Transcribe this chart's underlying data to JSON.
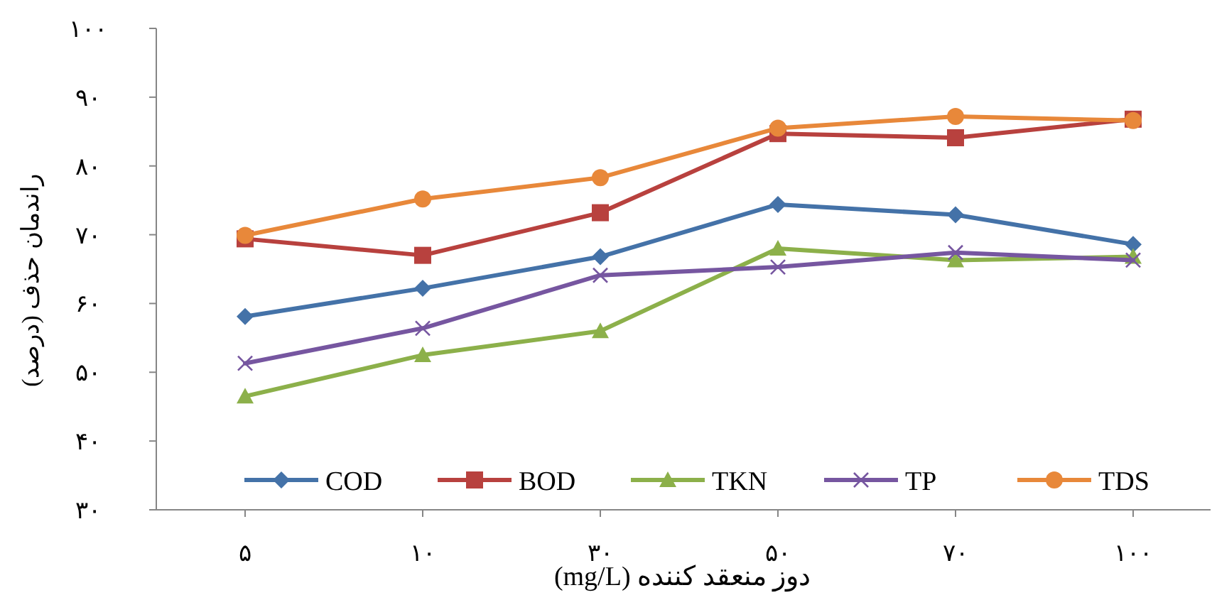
{
  "chart_data": {
    "type": "line",
    "xlabel": "دوز منعقد کننده (mg/L)",
    "ylabel": "راندمان حذف (درصد)",
    "categories": [
      "۵",
      "۱۰",
      "۳۰",
      "۵۰",
      "۷۰",
      "۱۰۰"
    ],
    "ylim": [
      30,
      100
    ],
    "yticks": [
      {
        "value": 30,
        "label": "۳۰"
      },
      {
        "value": 40,
        "label": "۴۰"
      },
      {
        "value": 50,
        "label": "۵۰"
      },
      {
        "value": 60,
        "label": "۶۰"
      },
      {
        "value": 70,
        "label": "۷۰"
      },
      {
        "value": 80,
        "label": "۸۰"
      },
      {
        "value": 90,
        "label": "۹۰"
      },
      {
        "value": 100,
        "label": "۱۰۰"
      }
    ],
    "grid": false,
    "legend": "bottom",
    "line_style": "solid",
    "series": [
      {
        "name": "COD",
        "color": "#4472a8",
        "marker": "diamond",
        "values": [
          58.1,
          62.2,
          66.8,
          74.4,
          72.9,
          68.6
        ]
      },
      {
        "name": "BOD",
        "color": "#b8413e",
        "marker": "square",
        "values": [
          69.4,
          67,
          73.2,
          84.7,
          84.1,
          86.8
        ]
      },
      {
        "name": "TKN",
        "color": "#8cb04a",
        "marker": "triangle",
        "values": [
          46.5,
          52.5,
          56,
          68,
          66.3,
          66.8
        ]
      },
      {
        "name": "TP",
        "color": "#7656a0",
        "marker": "cross",
        "values": [
          51.3,
          56.4,
          64.1,
          65.3,
          67.4,
          66.3
        ]
      },
      {
        "name": "TDS",
        "color": "#e8883a",
        "marker": "circle",
        "values": [
          69.9,
          75.2,
          78.3,
          85.5,
          87.2,
          86.6
        ]
      }
    ]
  }
}
